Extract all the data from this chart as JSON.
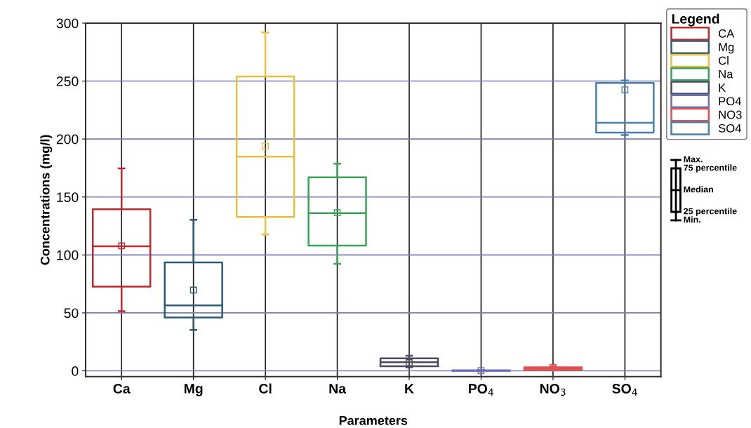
{
  "chart_data": {
    "type": "box",
    "xlabel": "Parameters",
    "ylabel": "Concentrations (mg/l)",
    "categories": [
      "Ca",
      "Mg",
      "Cl",
      "Na",
      "K",
      "PO$_{4}$",
      "NO$_{3}$",
      "SO$_{4}$"
    ],
    "series": [
      {
        "name": "CA",
        "color": "#c0282d",
        "boxes": [
          {
            "low": 51.5,
            "q1": 72.7,
            "median": 107.5,
            "q3": 139.4,
            "high": 174.7,
            "mean": 107.8
          },
          null,
          null,
          null,
          null,
          null,
          null,
          null
        ]
      },
      {
        "name": "Mg",
        "color": "#2f5a74",
        "boxes": [
          null,
          {
            "low": 35.3,
            "q1": 46,
            "median": 56.5,
            "q3": 93.5,
            "high": 130.3,
            "mean": 69.7
          },
          null,
          null,
          null,
          null,
          null,
          null
        ]
      },
      {
        "name": "Cl",
        "color": "#e8c040",
        "boxes": [
          null,
          null,
          {
            "low": 117.6,
            "q1": 132.7,
            "median": 184.8,
            "q3": 254,
            "high": 291.9,
            "mean": 194
          },
          null,
          null,
          null,
          null,
          null
        ]
      },
      {
        "name": "Na",
        "color": "#3aa35a",
        "boxes": [
          null,
          null,
          null,
          {
            "low": 92.3,
            "q1": 108,
            "median": 136,
            "q3": 167,
            "high": 178.8,
            "mean": 136.4
          },
          null,
          null,
          null,
          null
        ]
      },
      {
        "name": "K",
        "color": "#4a4a5e",
        "boxes": [
          null,
          null,
          null,
          null,
          {
            "low": 3,
            "q1": 4,
            "median": 7.5,
            "q3": 10.7,
            "high": 13,
            "mean": 7
          },
          null,
          null,
          null
        ]
      },
      {
        "name": "PO4",
        "color": "#6b6fb5",
        "boxes": [
          null,
          null,
          null,
          null,
          null,
          {
            "low": 0,
            "q1": 0,
            "median": 0.2,
            "q3": 0.5,
            "high": 0.7,
            "mean": 0.3
          },
          null,
          null
        ]
      },
      {
        "name": "NO3",
        "color": "#e05050",
        "boxes": [
          null,
          null,
          null,
          null,
          null,
          null,
          {
            "low": 0.6,
            "q1": 1,
            "median": 2,
            "q3": 3,
            "high": 4,
            "mean": 3
          },
          null
        ]
      },
      {
        "name": "SO4",
        "color": "#4a7fa8",
        "boxes": [
          null,
          null,
          null,
          null,
          null,
          null,
          null,
          {
            "low": 203.4,
            "q1": 205.5,
            "median": 214,
            "q3": 248.3,
            "high": 250.5,
            "mean": 242.4
          }
        ]
      }
    ],
    "ylim": [
      -5,
      300
    ],
    "yticks": [
      0,
      50,
      100,
      150,
      200,
      250,
      300
    ],
    "grid": true,
    "legend": "top right",
    "legend_title": "Legend",
    "annotations": [
      "Max.",
      "75 percentile",
      "Median",
      "25 percentile",
      "Min."
    ]
  }
}
